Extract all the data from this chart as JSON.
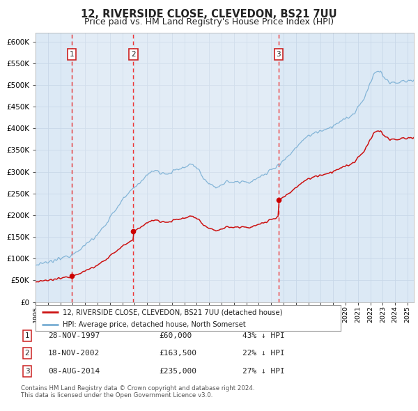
{
  "title": "12, RIVERSIDE CLOSE, CLEVEDON, BS21 7UU",
  "subtitle": "Price paid vs. HM Land Registry's House Price Index (HPI)",
  "title_fontsize": 10.5,
  "subtitle_fontsize": 9,
  "background_color": "#ffffff",
  "plot_bg_color": "#dce9f5",
  "grid_color": "#c8d8e8",
  "sale1": {
    "date_num": 1997.91,
    "price": 60000,
    "label": "1"
  },
  "sale2": {
    "date_num": 2002.88,
    "price": 163500,
    "label": "2"
  },
  "sale3": {
    "date_num": 2014.59,
    "price": 235000,
    "label": "3"
  },
  "vline_color": "#ee3333",
  "sale_marker_color": "#cc0000",
  "hpi_line_color": "#7aafd4",
  "price_line_color": "#cc1111",
  "legend_sale_label": "12, RIVERSIDE CLOSE, CLEVEDON, BS21 7UU (detached house)",
  "legend_hpi_label": "HPI: Average price, detached house, North Somerset",
  "table_rows": [
    {
      "num": "1",
      "date": "28-NOV-1997",
      "price": "£60,000",
      "note": "43% ↓ HPI"
    },
    {
      "num": "2",
      "date": "18-NOV-2002",
      "price": "£163,500",
      "note": "22% ↓ HPI"
    },
    {
      "num": "3",
      "date": "08-AUG-2014",
      "price": "£235,000",
      "note": "27% ↓ HPI"
    }
  ],
  "footnote1": "Contains HM Land Registry data © Crown copyright and database right 2024.",
  "footnote2": "This data is licensed under the Open Government Licence v3.0.",
  "ylim": [
    0,
    620000
  ],
  "xlim_start": 1995.0,
  "xlim_end": 2025.5,
  "shade1_start": 1997.91,
  "shade1_end": 2002.88,
  "shade2_start": 2002.88,
  "shade2_end": 2014.59
}
